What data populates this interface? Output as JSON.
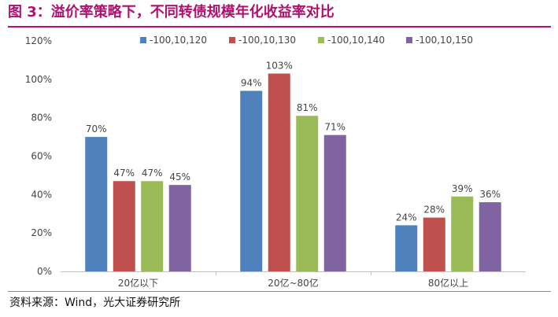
{
  "title": "图 3：溢价率策略下，不同转债规模年化收益率对比",
  "source": "资料来源：Wind，光大证券研究所",
  "chart_data": {
    "type": "bar",
    "categories": [
      "20亿以下",
      "20亿~80亿",
      "80亿以上"
    ],
    "series": [
      {
        "name": "-100,10,120",
        "color": "#4f81bd",
        "values": [
          70,
          94,
          24
        ],
        "labels": [
          "70%",
          "94%",
          "24%"
        ]
      },
      {
        "name": "-100,10,130",
        "color": "#c0504d",
        "values": [
          47,
          103,
          28
        ],
        "labels": [
          "47%",
          "103%",
          "28%"
        ]
      },
      {
        "name": "-100,10,140",
        "color": "#9bbb59",
        "values": [
          47,
          81,
          39
        ],
        "labels": [
          "47%",
          "81%",
          "39%"
        ]
      },
      {
        "name": "-100,10,150",
        "color": "#8064a2",
        "values": [
          45,
          71,
          36
        ],
        "labels": [
          "45%",
          "71%",
          "36%"
        ]
      }
    ],
    "y_ticks": [
      0,
      20,
      40,
      60,
      80,
      100,
      120
    ],
    "y_tick_labels": [
      "0%",
      "20%",
      "40%",
      "60%",
      "80%",
      "100%",
      "120%"
    ],
    "ylim": [
      0,
      120
    ],
    "ylabel": "",
    "xlabel": "",
    "legend_position": "top",
    "grid": false
  }
}
